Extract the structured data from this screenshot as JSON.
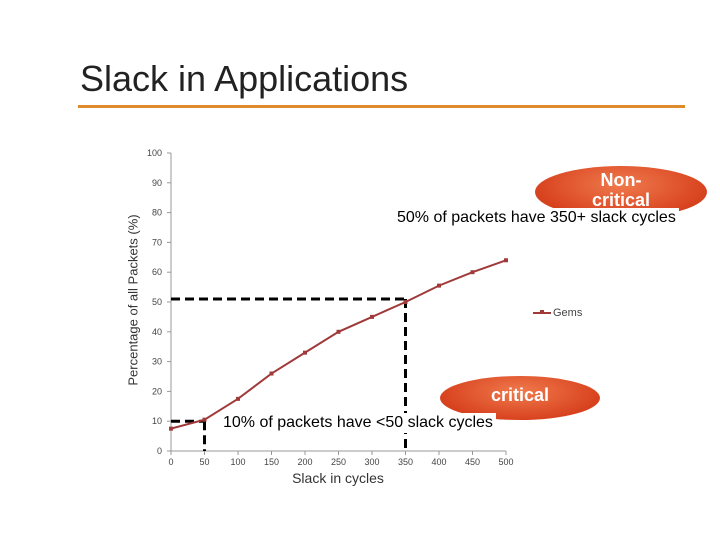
{
  "slide": {
    "title": "Slack in Applications"
  },
  "colors": {
    "accent": "#e08a2e",
    "series": "#a03a3a",
    "bubble": "#d8431f"
  },
  "annotations": {
    "noncritical_label": "Non-critical",
    "noncritical_text": "50% of packets have 350+ slack cycles",
    "critical_label": "critical",
    "critical_text": "10% of packets have <50 slack cycles"
  },
  "chart_data": {
    "type": "line",
    "title": "",
    "xlabel": "Slack in cycles",
    "ylabel": "Percentage of all Packets (%)",
    "xlim": [
      0,
      500
    ],
    "ylim": [
      0,
      100
    ],
    "x_ticks": [
      0,
      50,
      100,
      150,
      200,
      250,
      300,
      350,
      400,
      450,
      500
    ],
    "y_ticks": [
      0,
      10,
      20,
      30,
      40,
      50,
      60,
      70,
      80,
      90,
      100
    ],
    "grid": false,
    "legend": "right",
    "series": [
      {
        "name": "Gems",
        "x": [
          0,
          50,
          100,
          150,
          200,
          250,
          300,
          350,
          400,
          450,
          500
        ],
        "y": [
          7.5,
          10.5,
          17.5,
          26,
          33,
          40,
          45,
          50,
          55.5,
          60,
          64
        ]
      }
    ],
    "reference_lines": [
      {
        "x": 50,
        "y": 10
      },
      {
        "x": 350,
        "y": 51
      }
    ]
  }
}
